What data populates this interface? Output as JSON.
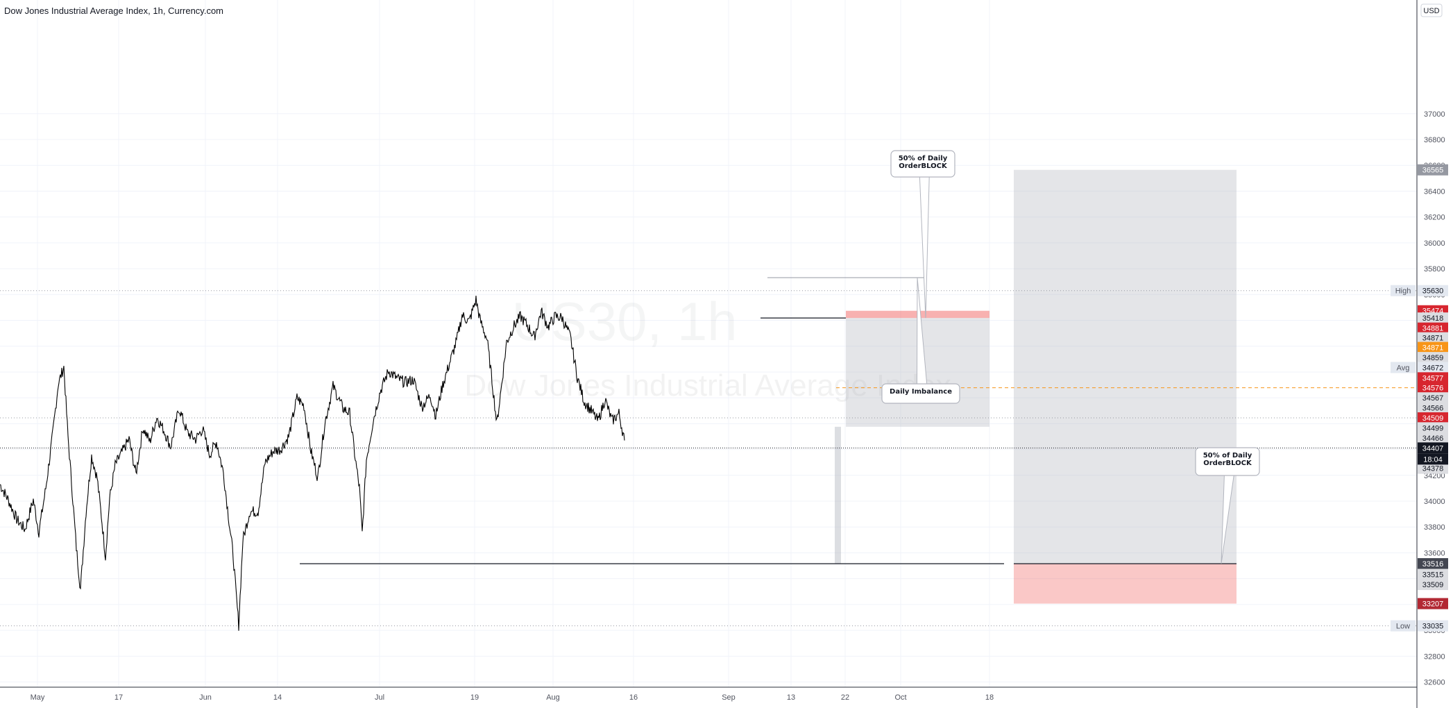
{
  "header": {
    "title": "Dow Jones Industrial Average Index, 1h, Currency.com"
  },
  "watermark": {
    "symbol": "US30, 1h",
    "name": "Dow Jones Industrial Average Index"
  },
  "chart_data": {
    "type": "line",
    "currency": "USD",
    "y_range": [
      32560,
      37880
    ],
    "y_ticks": [
      32600,
      32800,
      33000,
      33200,
      33400,
      33600,
      33800,
      34000,
      34200,
      34400,
      34600,
      34800,
      35000,
      35200,
      35400,
      35600,
      35800,
      36000,
      36200,
      36400,
      36600,
      36800,
      37000
    ],
    "x_ticks": [
      "May",
      "17",
      "Jun",
      "14",
      "Jul",
      "19",
      "Aug",
      "16",
      "Sep",
      "13",
      "22",
      "Oct",
      "18"
    ],
    "series": [
      {
        "points": [
          [
            0,
            34130
          ],
          [
            12,
            34010
          ],
          [
            24,
            33860
          ],
          [
            36,
            33780
          ],
          [
            48,
            34010
          ],
          [
            56,
            33760
          ],
          [
            66,
            34100
          ],
          [
            76,
            34520
          ],
          [
            84,
            34910
          ],
          [
            92,
            35040
          ],
          [
            98,
            34500
          ],
          [
            104,
            34080
          ],
          [
            110,
            33640
          ],
          [
            116,
            33320
          ],
          [
            124,
            33920
          ],
          [
            132,
            34350
          ],
          [
            140,
            34180
          ],
          [
            146,
            33890
          ],
          [
            152,
            33570
          ],
          [
            158,
            34020
          ],
          [
            166,
            34280
          ],
          [
            176,
            34380
          ],
          [
            186,
            34480
          ],
          [
            196,
            34210
          ],
          [
            206,
            34570
          ],
          [
            216,
            34460
          ],
          [
            226,
            34650
          ],
          [
            236,
            34550
          ],
          [
            246,
            34420
          ],
          [
            258,
            34720
          ],
          [
            270,
            34530
          ],
          [
            282,
            34480
          ],
          [
            292,
            34560
          ],
          [
            302,
            34360
          ],
          [
            312,
            34460
          ],
          [
            322,
            34220
          ],
          [
            330,
            33850
          ],
          [
            336,
            33580
          ],
          [
            340,
            33300
          ],
          [
            344,
            33040
          ],
          [
            350,
            33700
          ],
          [
            360,
            33920
          ],
          [
            372,
            33920
          ],
          [
            382,
            34300
          ],
          [
            394,
            34390
          ],
          [
            404,
            34400
          ],
          [
            416,
            34500
          ],
          [
            428,
            34800
          ],
          [
            438,
            34740
          ],
          [
            448,
            34390
          ],
          [
            458,
            34180
          ],
          [
            468,
            34600
          ],
          [
            480,
            34890
          ],
          [
            494,
            34720
          ],
          [
            504,
            34680
          ],
          [
            512,
            34330
          ],
          [
            518,
            34100
          ],
          [
            522,
            33750
          ],
          [
            528,
            34320
          ],
          [
            538,
            34630
          ],
          [
            548,
            34850
          ],
          [
            560,
            35010
          ],
          [
            572,
            34950
          ],
          [
            584,
            34920
          ],
          [
            596,
            34940
          ],
          [
            608,
            34730
          ],
          [
            620,
            34820
          ],
          [
            628,
            34660
          ],
          [
            638,
            34900
          ],
          [
            648,
            35070
          ],
          [
            658,
            35240
          ],
          [
            666,
            35440
          ],
          [
            676,
            35390
          ],
          [
            686,
            35560
          ],
          [
            692,
            35400
          ],
          [
            702,
            35250
          ],
          [
            710,
            34890
          ],
          [
            716,
            34600
          ],
          [
            722,
            34860
          ],
          [
            730,
            35230
          ],
          [
            740,
            35350
          ],
          [
            750,
            35430
          ],
          [
            760,
            35360
          ],
          [
            770,
            35270
          ],
          [
            780,
            35470
          ],
          [
            790,
            35350
          ],
          [
            800,
            35430
          ],
          [
            810,
            35420
          ],
          [
            822,
            35270
          ],
          [
            832,
            34960
          ],
          [
            842,
            34770
          ],
          [
            852,
            34700
          ],
          [
            862,
            34620
          ],
          [
            872,
            34790
          ],
          [
            882,
            34620
          ],
          [
            892,
            34680
          ],
          [
            900,
            34470
          ]
        ]
      }
    ]
  },
  "price_axis": {
    "currency_label": "USD",
    "high_label": "High",
    "low_label": "Low",
    "avg_label": "Avg",
    "clock": "18:04",
    "tags": [
      {
        "text": "36565",
        "value": 36565,
        "bg": "#9598a1",
        "fg": "#ffffff"
      },
      {
        "text": "35630",
        "value": 35630,
        "bg": "#e3e8f0",
        "fg": "#131722"
      },
      {
        "text": "35474",
        "value": 35474,
        "bg": "#d7262f",
        "fg": "#ffffff"
      },
      {
        "text": "35418",
        "value": 35418,
        "bg": "#dcdde1",
        "fg": "#131722"
      },
      {
        "text": "34881",
        "value": 35340,
        "bg": "#d7262f",
        "fg": "#ffffff"
      },
      {
        "text": "34871",
        "value": 35265,
        "bg": "#dcdde1",
        "fg": "#131722"
      },
      {
        "text": "34871",
        "value": 35190,
        "bg": "#f89517",
        "fg": "#ffffff"
      },
      {
        "text": "34859",
        "value": 35112,
        "bg": "#dcdde1",
        "fg": "#131722"
      },
      {
        "text": "34672",
        "value": 35035,
        "bg": "#e3e8f0",
        "fg": "#131722"
      },
      {
        "text": "34577",
        "value": 34955,
        "bg": "#d7262f",
        "fg": "#ffffff"
      },
      {
        "text": "34576",
        "value": 34878,
        "bg": "#d7262f",
        "fg": "#ffffff"
      },
      {
        "text": "34567",
        "value": 34800,
        "bg": "#dcdde1",
        "fg": "#131722"
      },
      {
        "text": "34566",
        "value": 34722,
        "bg": "#dcdde1",
        "fg": "#131722"
      },
      {
        "text": "34509",
        "value": 34645,
        "bg": "#d7262f",
        "fg": "#ffffff"
      },
      {
        "text": "34499",
        "value": 34568,
        "bg": "#dcdde1",
        "fg": "#131722"
      },
      {
        "text": "34466",
        "value": 34490,
        "bg": "#dcdde1",
        "fg": "#131722"
      },
      {
        "text": "34407",
        "value": 34412,
        "bg": "#131722",
        "fg": "#ffffff"
      },
      {
        "text": "34378",
        "value": 34255,
        "bg": "#dcdde1",
        "fg": "#131722"
      },
      {
        "text": "33516",
        "value": 33516,
        "bg": "#434651",
        "fg": "#ffffff"
      },
      {
        "text": "33515",
        "value": 33433,
        "bg": "#dcdde1",
        "fg": "#131722"
      },
      {
        "text": "33509",
        "value": 33355,
        "bg": "#dcdde1",
        "fg": "#131722"
      },
      {
        "text": "33207",
        "value": 33207,
        "bg": "#b22833",
        "fg": "#ffffff"
      },
      {
        "text": "33035",
        "value": 33035,
        "bg": "#e3e8f0",
        "fg": "#131722"
      }
    ]
  },
  "annotations": [
    {
      "id": "ob-top",
      "lines": [
        "50% of Daily",
        "OrderBLOCK"
      ]
    },
    {
      "id": "imbalance",
      "lines": [
        "Daily Imbalance"
      ]
    },
    {
      "id": "ob-bottom",
      "lines": [
        "50% of Daily",
        "OrderBLOCK"
      ]
    }
  ],
  "colors": {
    "grid": "#f0f3fa",
    "price": "#000000",
    "zone_grey": "#b2b5be",
    "zone_red": "#ef5350",
    "dashed_orange": "#f89517"
  }
}
